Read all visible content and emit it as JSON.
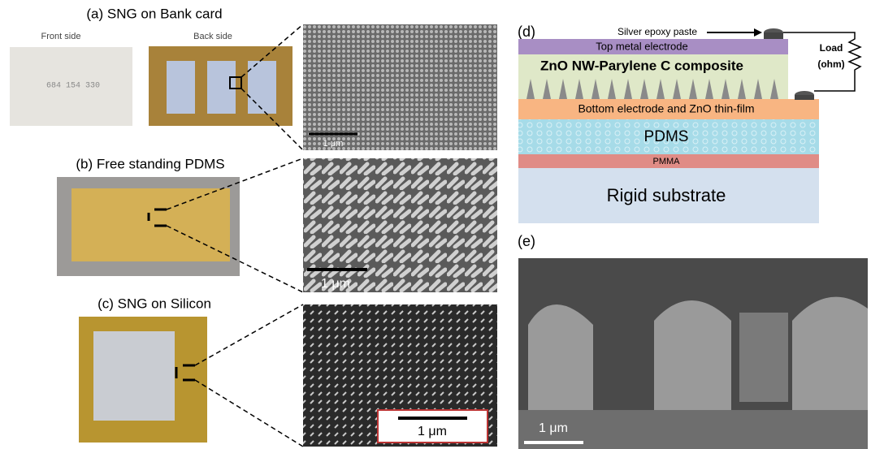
{
  "panels": {
    "a": {
      "label": "(a) SNG on Bank card",
      "front": "Front side",
      "back": "Back side",
      "card_number": "684 154 330",
      "scale": "1 μm"
    },
    "b": {
      "label": "(b) Free standing PDMS",
      "scale": "1 μm"
    },
    "c": {
      "label": "(c) SNG on Silicon",
      "scale": "1 μm"
    },
    "d": {
      "label": "(d)",
      "paste": "Silver epoxy paste",
      "layers": [
        "Top metal electrode",
        "ZnO NW-Parylene C composite",
        "Bottom electrode and ZnO thin-film",
        "PDMS",
        "PMMA",
        "Rigid substrate"
      ],
      "load": "Load",
      "load_unit": "(ohm)"
    },
    "e": {
      "label": "(e)",
      "scale": "1 μm"
    }
  }
}
